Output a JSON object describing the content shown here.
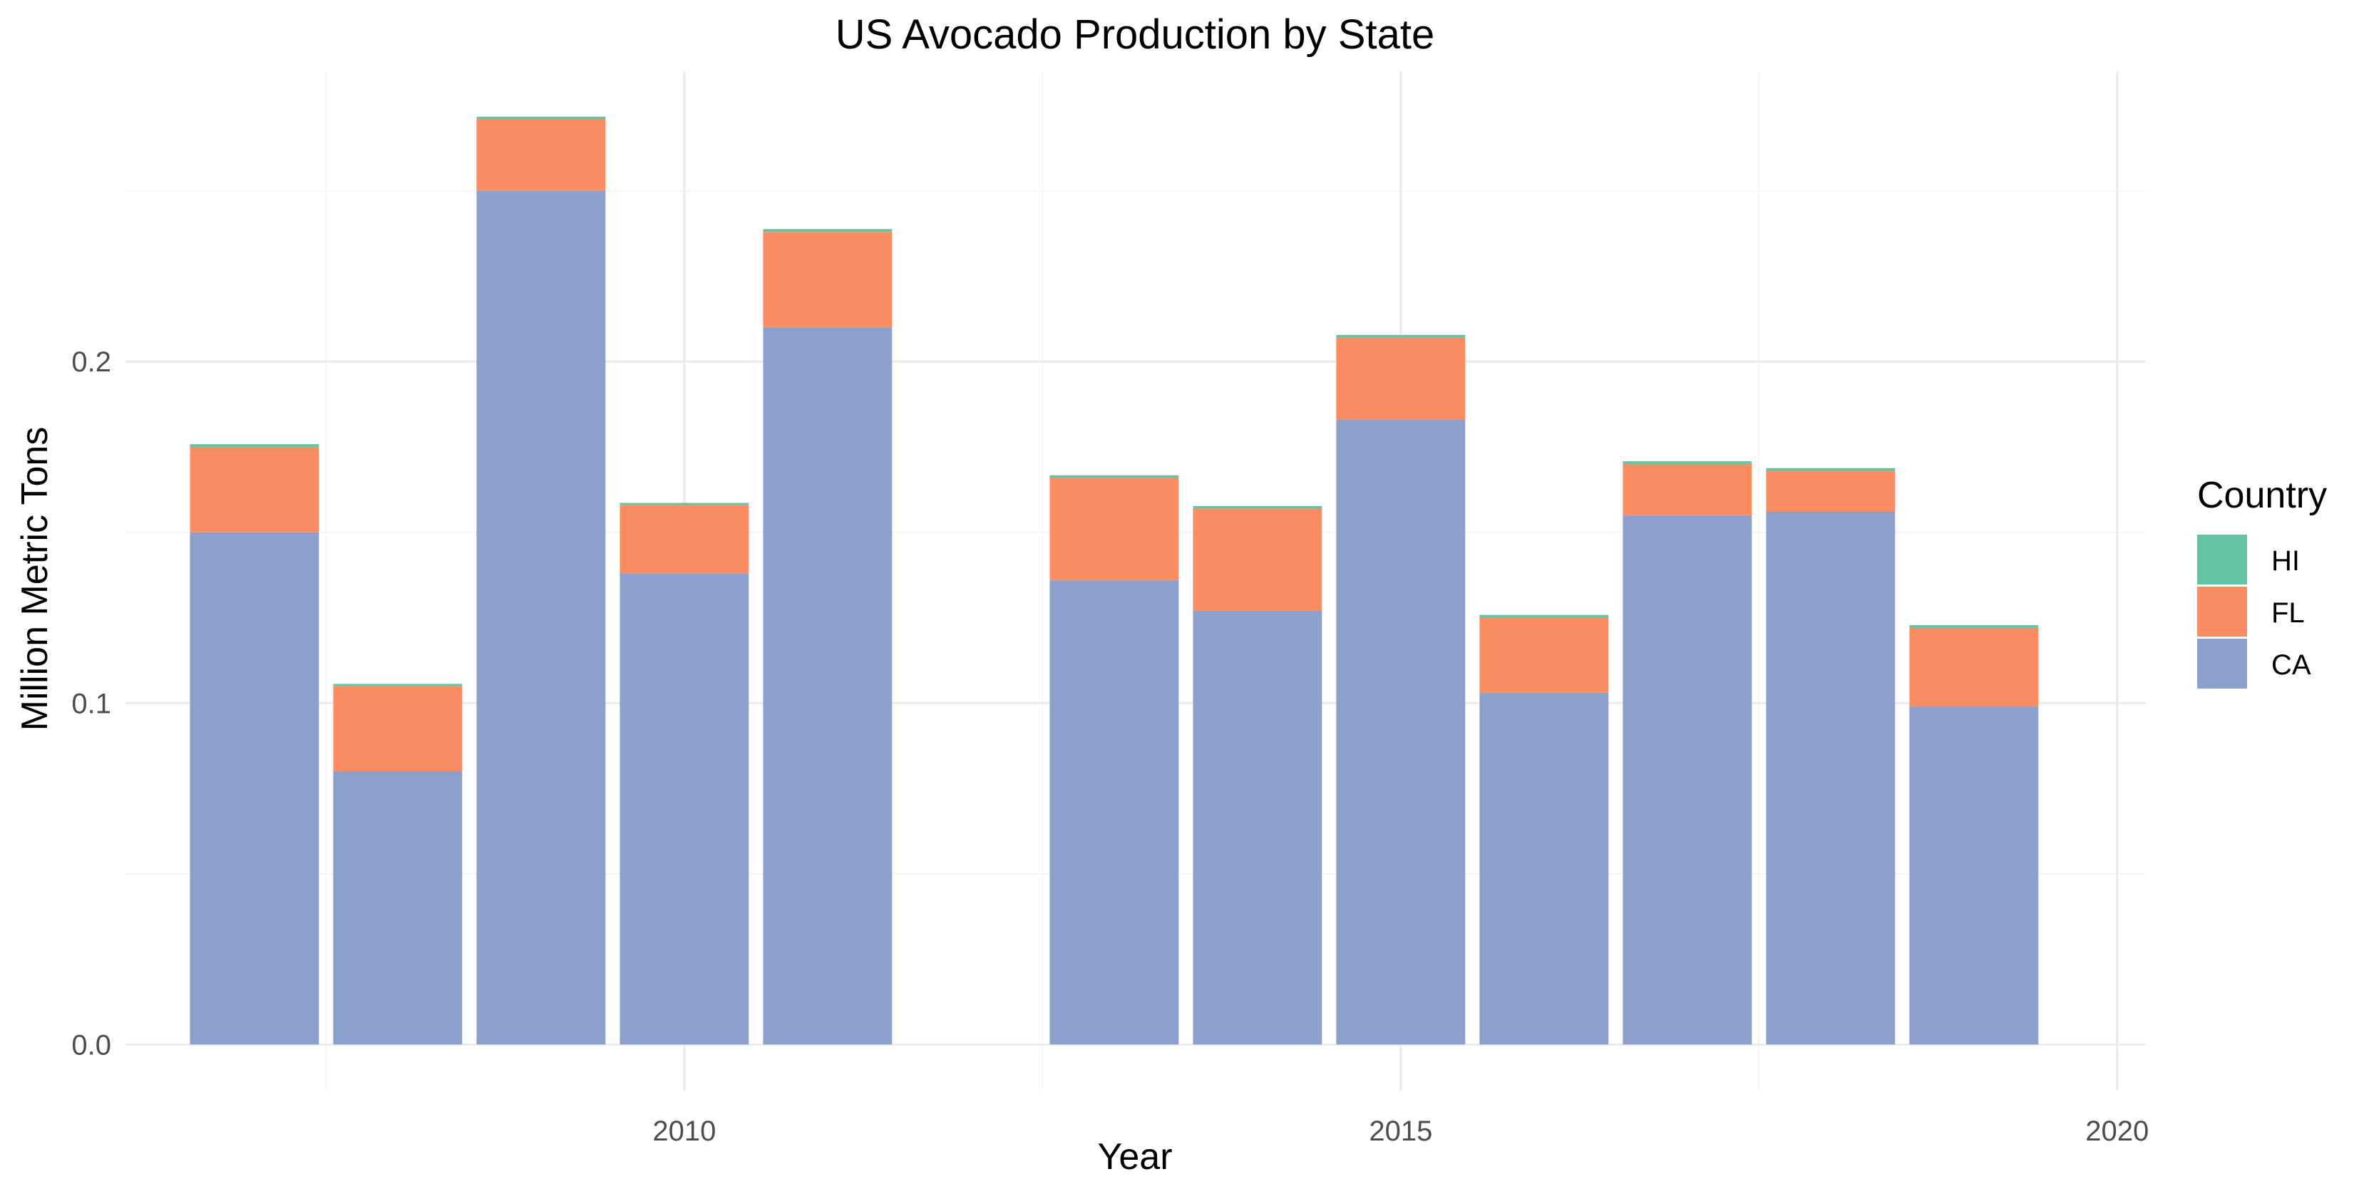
{
  "chart_data": {
    "type": "bar",
    "stacked": true,
    "title": "US Avocado Production by State",
    "xlabel": "Year",
    "ylabel": "Million Metric Tons",
    "x": [
      2007,
      2008,
      2009,
      2010,
      2011,
      2013,
      2014,
      2015,
      2016,
      2017,
      2018,
      2019
    ],
    "series": [
      {
        "name": "CA",
        "color": "#8DA0CB",
        "values": [
          0.15,
          0.08,
          0.25,
          0.138,
          0.21,
          0.136,
          0.127,
          0.183,
          0.103,
          0.155,
          0.156,
          0.099
        ]
      },
      {
        "name": "FL",
        "color": "#FC8D62",
        "values": [
          0.025,
          0.025,
          0.021,
          0.02,
          0.028,
          0.03,
          0.03,
          0.024,
          0.022,
          0.015,
          0.012,
          0.023
        ]
      },
      {
        "name": "HI",
        "color": "#66C2A5",
        "values": [
          0.0008,
          0.0006,
          0.0007,
          0.0006,
          0.0008,
          0.0007,
          0.0007,
          0.0008,
          0.0008,
          0.0008,
          0.0008,
          0.0008
        ]
      }
    ],
    "legend": {
      "title": "Country",
      "position": "right",
      "order": [
        "HI",
        "FL",
        "CA"
      ]
    },
    "xlim": [
      2006.1,
      2020.2
    ],
    "ylim": [
      -0.0135,
      0.285
    ],
    "x_ticks": [
      2010,
      2015,
      2020
    ],
    "y_ticks": [
      0.0,
      0.1,
      0.2
    ],
    "y_tick_labels": [
      "0.0",
      "0.1",
      "0.2"
    ],
    "grid": true
  }
}
